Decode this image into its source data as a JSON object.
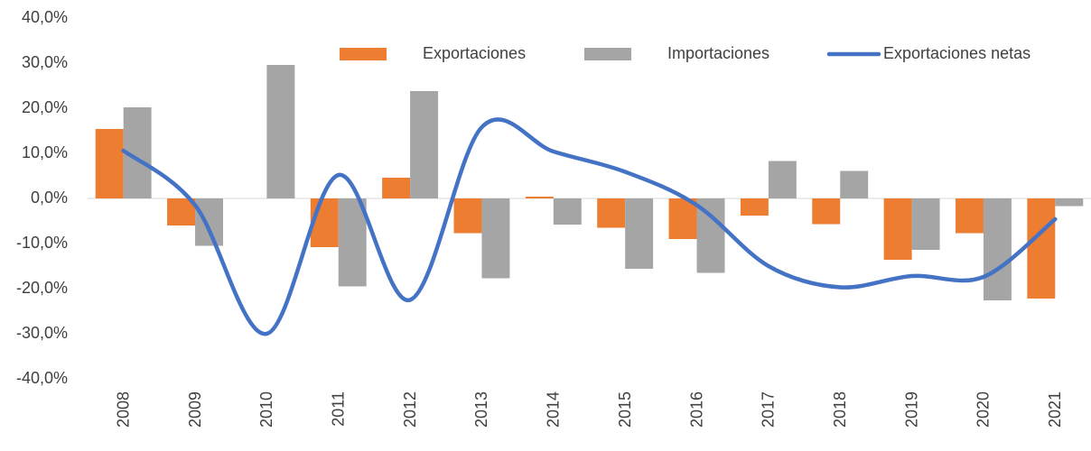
{
  "chart_data": {
    "type": "bar_line",
    "categories": [
      "2008",
      "2009",
      "2010",
      "2011",
      "2012",
      "2013",
      "2014",
      "2015",
      "2016",
      "2017",
      "2018",
      "2019",
      "2020",
      "2021"
    ],
    "series": [
      {
        "name": "Exportaciones",
        "type": "bar",
        "color": "#ed7d31",
        "values": [
          15.4,
          -6.0,
          0.0,
          -10.8,
          4.6,
          -7.7,
          0.4,
          -6.5,
          -9.0,
          -3.8,
          -5.7,
          -13.6,
          -7.7,
          -22.2
        ]
      },
      {
        "name": "Importaciones",
        "type": "bar",
        "color": "#a5a5a5",
        "values": [
          20.2,
          -10.5,
          29.6,
          -19.5,
          23.8,
          -17.7,
          -5.8,
          -15.6,
          -16.5,
          8.3,
          6.1,
          -11.4,
          -22.6,
          -1.7
        ]
      },
      {
        "name": "Exportaciones netas",
        "type": "line",
        "color": "#4472c4",
        "values": [
          10.6,
          -1.5,
          -30.0,
          5.2,
          -22.5,
          15.8,
          10.4,
          5.9,
          -1.5,
          -15.0,
          -19.7,
          -17.2,
          -17.4,
          -4.6
        ]
      }
    ],
    "ylim": [
      -40,
      40
    ],
    "yticks": [
      {
        "value": -40,
        "label": "-40,0%"
      },
      {
        "value": -30,
        "label": "-30,0%"
      },
      {
        "value": -20,
        "label": "-20,0%"
      },
      {
        "value": -10,
        "label": "-10,0%"
      },
      {
        "value": 0,
        "label": "0,0%"
      },
      {
        "value": 10,
        "label": "10,0%"
      },
      {
        "value": 20,
        "label": "20,0%"
      },
      {
        "value": 30,
        "label": "30,0%"
      },
      {
        "value": 40,
        "label": "40,0%"
      }
    ],
    "legend": "top-right",
    "grid": false
  }
}
